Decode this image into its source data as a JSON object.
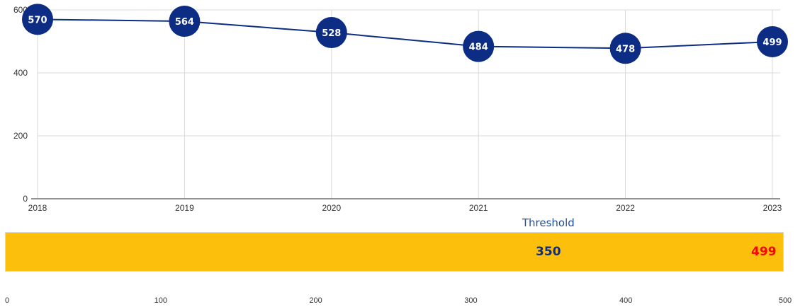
{
  "colors": {
    "line": "#0d2d84",
    "marker": "#0d2d84",
    "gauge_fill": "#fcbf0b",
    "threshold": "#0d2d84",
    "actual": "#ff0000",
    "threshold_label": "#1f4e9a",
    "grid": "#d9d9d9"
  },
  "chart_data": [
    {
      "type": "line",
      "x": [
        "2018",
        "2019",
        "2020",
        "2021",
        "2022",
        "2023"
      ],
      "series": [
        {
          "values": [
            570,
            564,
            528,
            484,
            478,
            499
          ]
        }
      ],
      "ylim": [
        0,
        600
      ],
      "yticks": [
        "0",
        "200",
        "400",
        "600"
      ],
      "grid": true,
      "data_labels": [
        "570",
        "564",
        "528",
        "484",
        "478",
        "499"
      ]
    },
    {
      "type": "bar",
      "orientation": "horizontal",
      "threshold_label": "Threshold",
      "threshold": 350,
      "value": 499,
      "value_label": "499",
      "threshold_value_label": "350",
      "xlim": [
        0,
        500
      ],
      "xticks": [
        "0",
        "100",
        "200",
        "300",
        "400",
        "500"
      ]
    }
  ]
}
